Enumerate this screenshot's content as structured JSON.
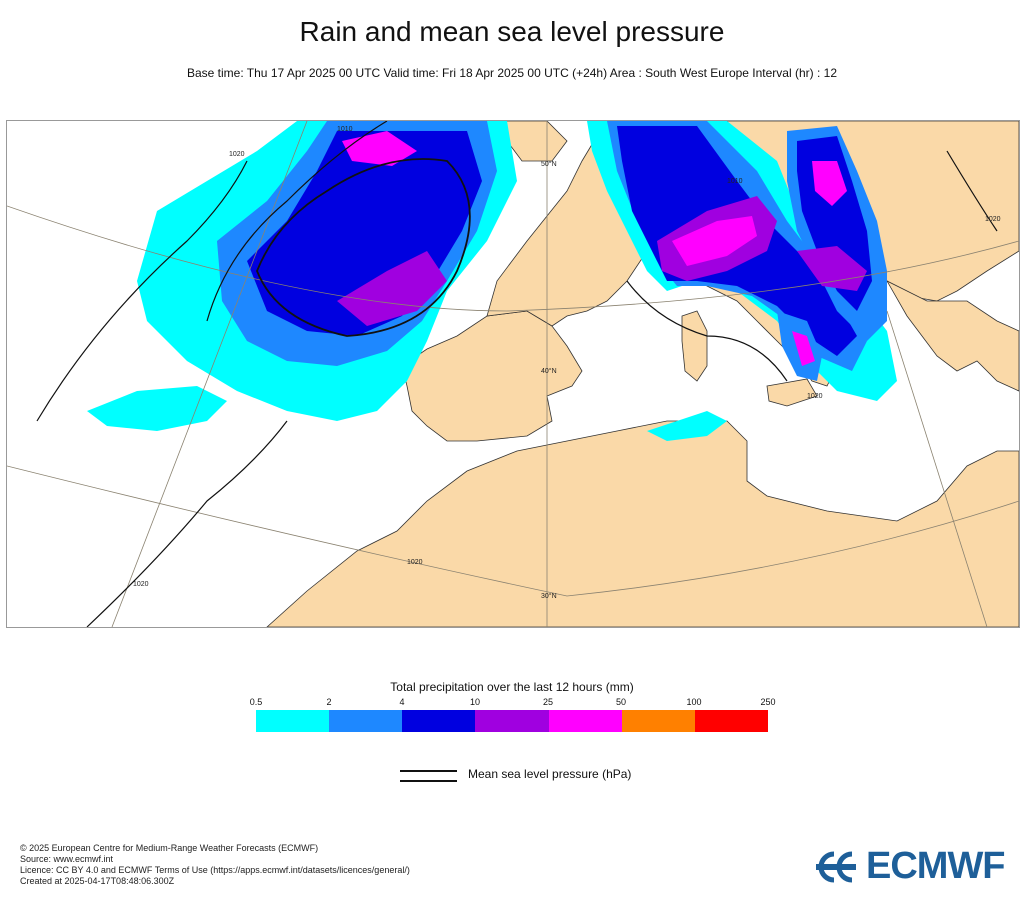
{
  "header": {
    "title": "Rain and mean sea level pressure",
    "subtitle": "Base time: Thu 17 Apr 2025 00 UTC Valid time: Fri 18 Apr 2025 00 UTC (+24h) Area : South West Europe Interval (hr) : 12"
  },
  "map": {
    "isobar_labels": [
      "1020",
      "1020",
      "1010",
      "1010",
      "1020",
      "1020",
      "1020"
    ],
    "lat_labels": [
      "50°N",
      "40°N",
      "30°N"
    ],
    "colors": {
      "land": "#fad9a8",
      "sea": "#ffffff",
      "coast": "#333333",
      "graticule": "#8a8270",
      "isobar": "#111111"
    }
  },
  "legend": {
    "title": "Total precipitation over the last 12 hours (mm)",
    "ticks": [
      "0.5",
      "2",
      "4",
      "10",
      "25",
      "50",
      "100",
      "250"
    ],
    "colors": [
      "#00ffff",
      "#1e88ff",
      "#0000e0",
      "#a000e0",
      "#ff00ff",
      "#ff8000",
      "#ff0000"
    ],
    "mslp_label": "Mean sea level pressure (hPa)"
  },
  "footer": {
    "copyright": "© 2025 European Centre for Medium-Range Weather Forecasts (ECMWF)",
    "source": "Source: www.ecmwf.int",
    "licence": "Licence: CC BY 4.0 and ECMWF Terms of Use (https://apps.ecmwf.int/datasets/licences/general/)",
    "created": "Created at 2025-04-17T08:48:06.300Z",
    "logo_text": "ECMWF"
  }
}
